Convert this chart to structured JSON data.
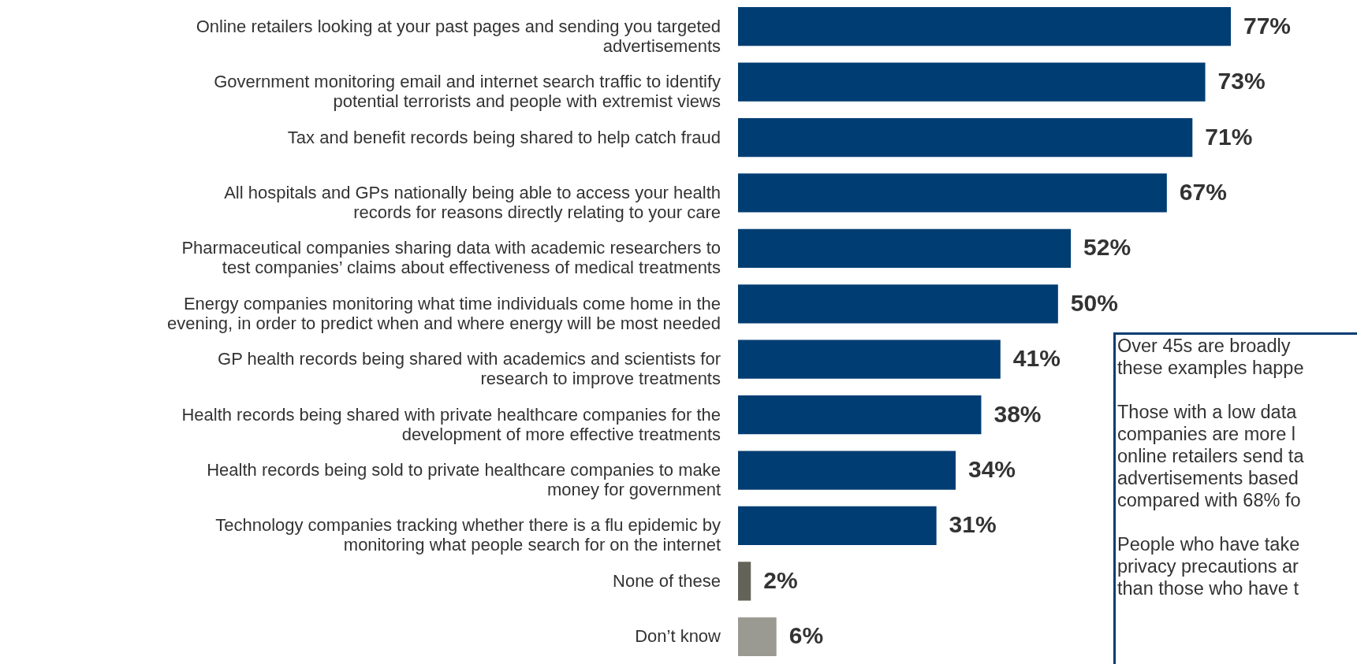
{
  "chart_data": {
    "type": "bar",
    "orientation": "horizontal",
    "categories": [
      "Online retailers looking at your past pages and sending you targeted advertisements",
      "Government monitoring email and internet search traffic to identify potential terrorists and people with extremist views",
      "Tax and benefit records being shared to help catch fraud",
      "All hospitals and GPs nationally being able to access your health records for reasons directly relating to your care",
      "Pharmaceutical companies sharing data with academic researchers to test companies’ claims about effectiveness of medical treatments",
      "Energy companies monitoring what time individuals come home in the evening, in order to predict when and where energy will be most needed",
      "GP health records being shared with academics and scientists for research to improve treatments",
      "Health records being shared with private healthcare companies for the development of more effective treatments",
      "Health records being sold to private healthcare companies to make money for government",
      "Technology companies tracking whether there is a flu epidemic by monitoring what people search for on the internet",
      "None of these",
      "Don’t know"
    ],
    "values": [
      77,
      73,
      71,
      67,
      52,
      50,
      41,
      38,
      34,
      31,
      2,
      6
    ],
    "colors": [
      "#003d73",
      "#003d73",
      "#003d73",
      "#003d73",
      "#003d73",
      "#003d73",
      "#003d73",
      "#003d73",
      "#003d73",
      "#003d73",
      "#636359",
      "#9a9a92"
    ],
    "value_labels": [
      "77%",
      "73%",
      "71%",
      "67%",
      "52%",
      "50%",
      "41%",
      "38%",
      "34%",
      "31%",
      "2%",
      "6%"
    ],
    "annotations": [
      "Over 45s are broadly\nthese examples happe",
      "Those with a low data\ncompanies are more l\nonline retailers send ta\nadvertisements based\ncompared with 68% fo",
      "People who have take\nprivacy precautions ar\nthan those who have t"
    ]
  }
}
